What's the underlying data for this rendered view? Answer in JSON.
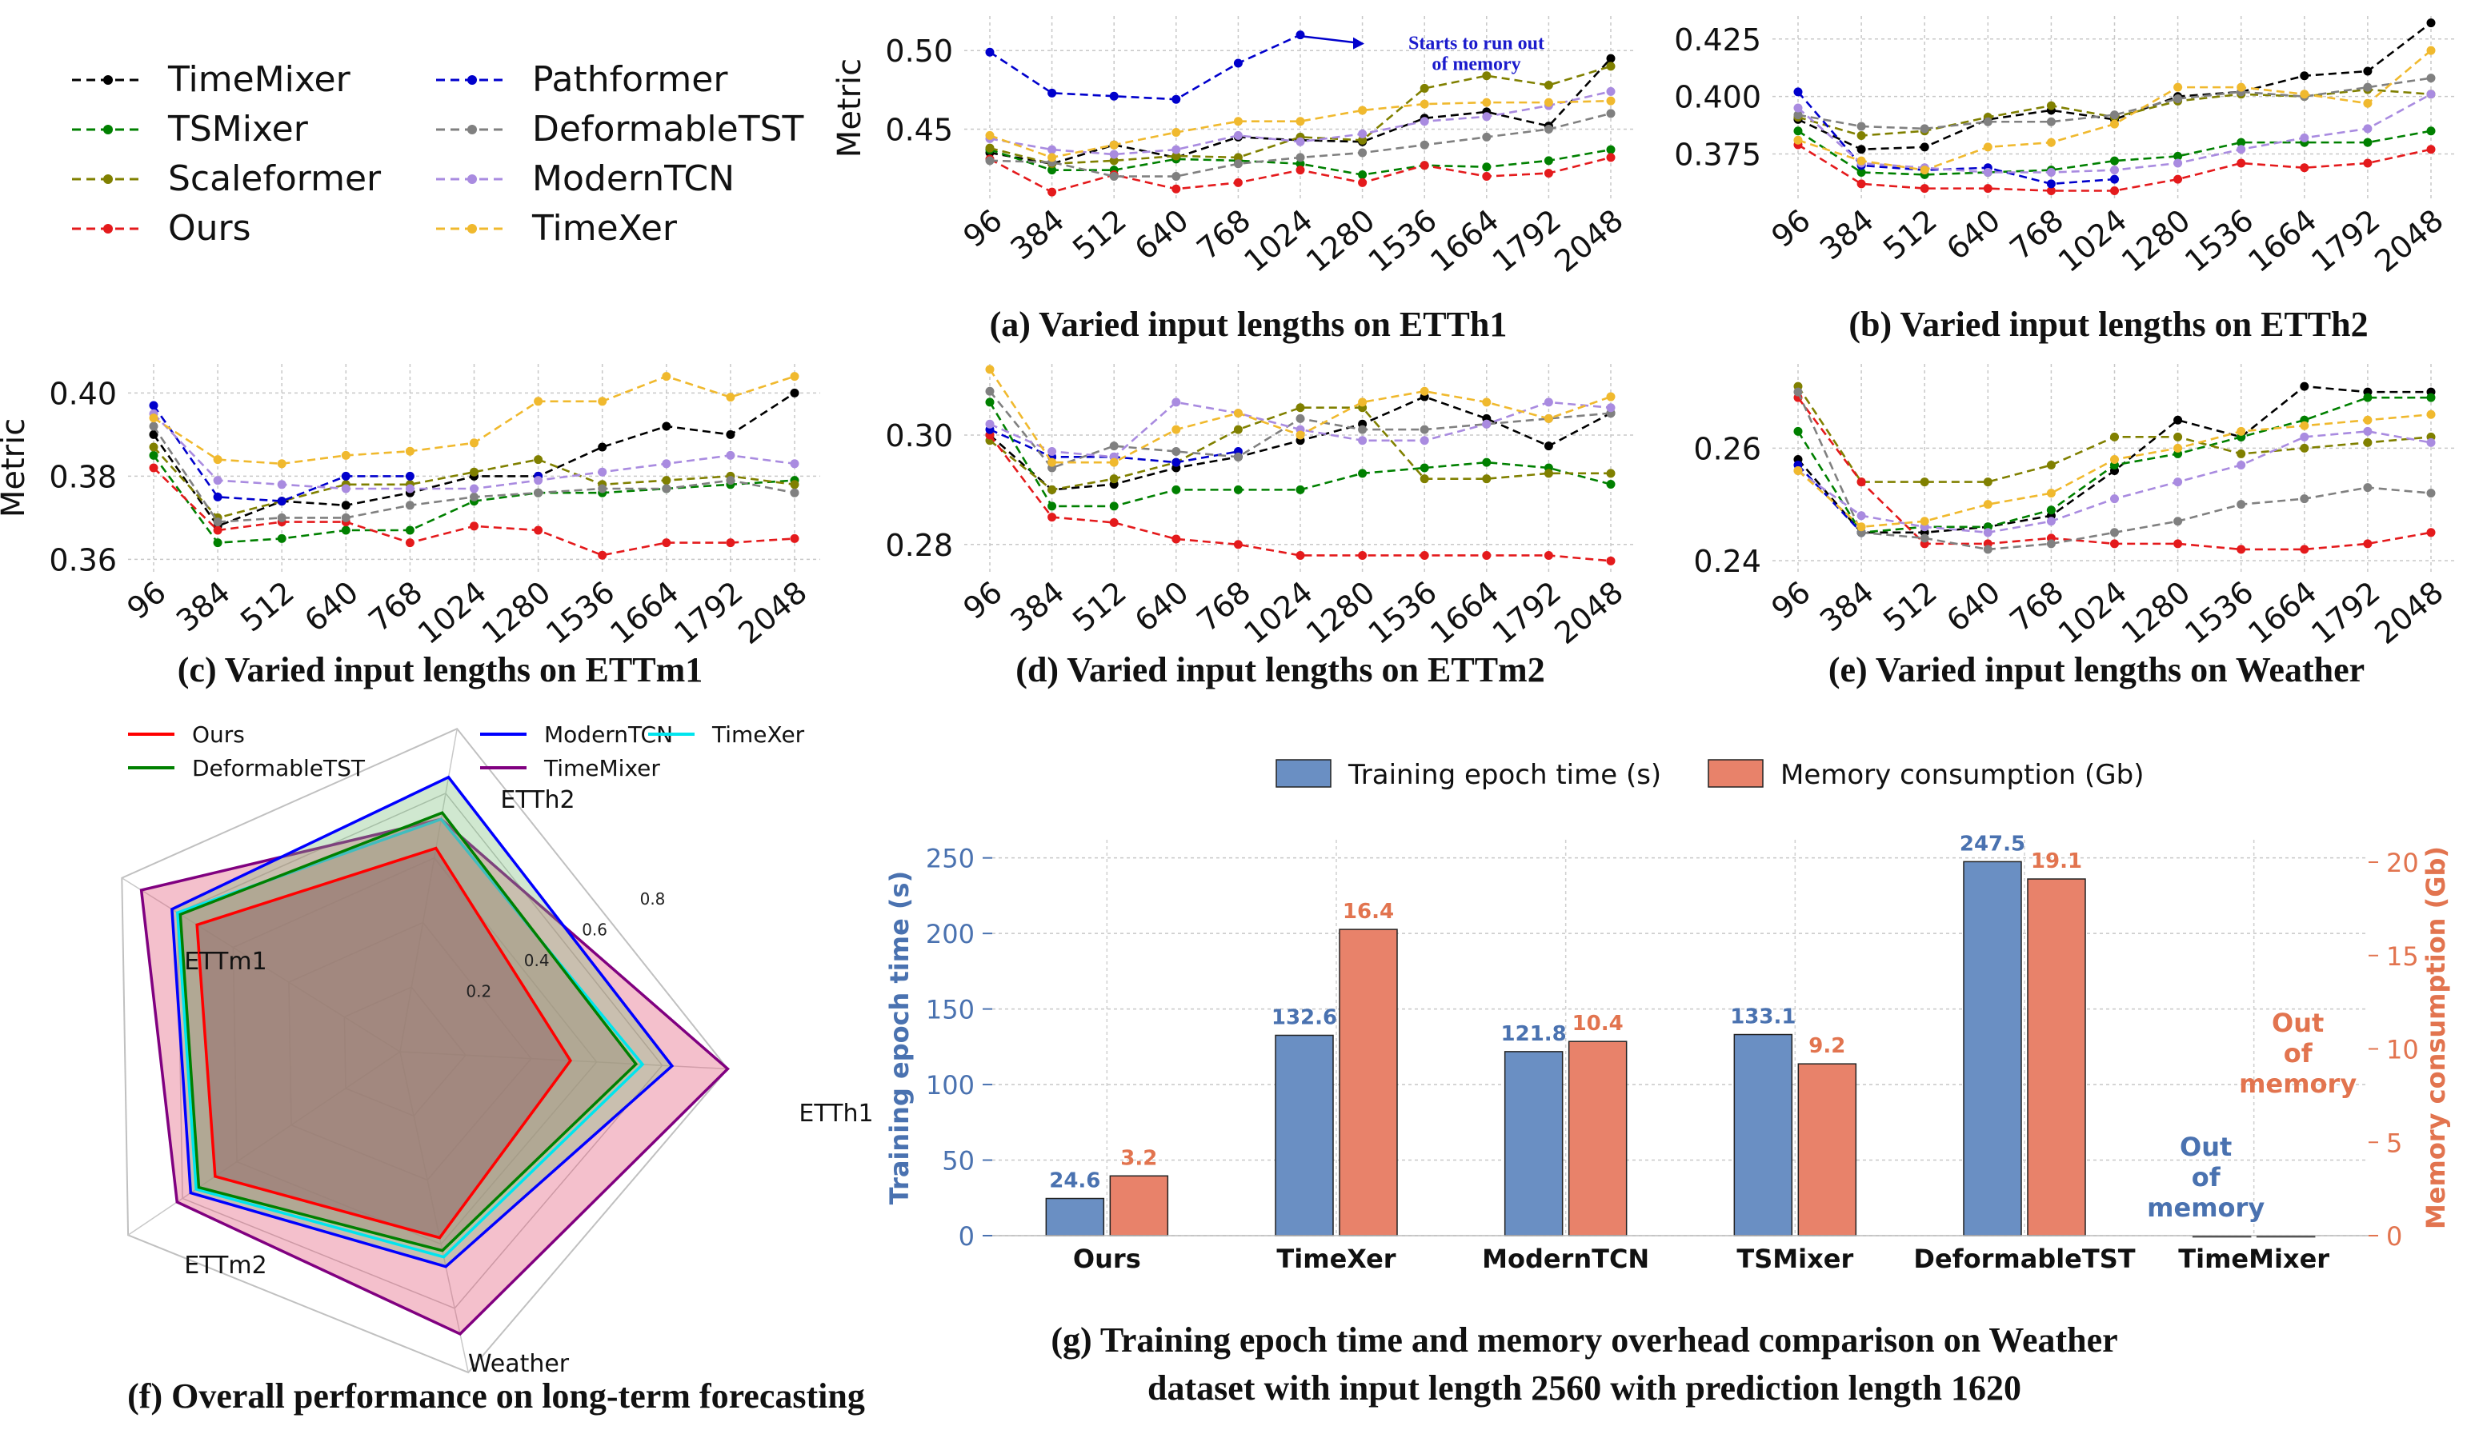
{
  "legend_top": {
    "entries": [
      {
        "name": "TimeMixer",
        "color": "#000000"
      },
      {
        "name": "TSMixer",
        "color": "#008000"
      },
      {
        "name": "Scaleformer",
        "color": "#808000"
      },
      {
        "name": "Ours",
        "color": "#e41a1c"
      },
      {
        "name": "Pathformer",
        "color": "#0000cc"
      },
      {
        "name": "DeformableTST",
        "color": "#808080"
      },
      {
        "name": "ModernTCN",
        "color": "#a98be0"
      },
      {
        "name": "TimeXer",
        "color": "#f0b92e"
      }
    ]
  },
  "captions": {
    "a": "(a) Varied input lengths on ETTh1",
    "b": "(b) Varied input lengths on ETTh2",
    "c": "(c) Varied input lengths on ETTm1",
    "d": "(d) Varied input lengths on ETTm2",
    "e": "(e) Varied input lengths on Weather",
    "f": "(f) Overall performance on long-term forecasting",
    "g_line1": "(g) Training epoch time and memory overhead comparison on Weather",
    "g_line2": "dataset with input length  2560 with prediction length 1620"
  },
  "chart_data": [
    {
      "id": "a",
      "type": "line",
      "ylabel": "Metric",
      "x": [
        "96",
        "384",
        "512",
        "640",
        "768",
        "1024",
        "1280",
        "1536",
        "1664",
        "1792",
        "2048"
      ],
      "ylim": [
        0.405,
        0.522
      ],
      "yticks": [
        0.45,
        0.5
      ],
      "ytick_labels": [
        "0.45",
        "0.50"
      ],
      "annotation": "Starts to run out of memory",
      "series": [
        {
          "name": "TimeMixer",
          "values": [
            0.435,
            0.428,
            0.44,
            0.432,
            0.445,
            0.443,
            0.442,
            0.457,
            0.461,
            0.452,
            0.495
          ]
        },
        {
          "name": "TSMixer",
          "values": [
            0.437,
            0.424,
            0.424,
            0.431,
            0.43,
            0.428,
            0.421,
            0.427,
            0.426,
            0.43,
            0.437
          ]
        },
        {
          "name": "Scaleformer",
          "values": [
            0.438,
            0.428,
            0.43,
            0.433,
            0.432,
            0.445,
            0.443,
            0.476,
            0.484,
            0.478,
            0.49
          ]
        },
        {
          "name": "Ours",
          "values": [
            0.431,
            0.41,
            0.421,
            0.412,
            0.416,
            0.424,
            0.416,
            0.427,
            0.42,
            0.422,
            0.432
          ]
        },
        {
          "name": "Pathformer",
          "values": [
            0.499,
            0.473,
            0.471,
            0.469,
            0.492,
            0.51,
            null,
            null,
            null,
            null,
            null
          ]
        },
        {
          "name": "DeformableTST",
          "values": [
            0.43,
            0.429,
            0.42,
            0.42,
            0.428,
            0.432,
            0.435,
            0.44,
            0.445,
            0.45,
            0.46
          ]
        },
        {
          "name": "ModernTCN",
          "values": [
            0.444,
            0.437,
            0.434,
            0.437,
            0.446,
            0.442,
            0.447,
            0.455,
            0.458,
            0.465,
            0.474
          ]
        },
        {
          "name": "TimeXer",
          "values": [
            0.446,
            0.432,
            0.44,
            0.448,
            0.455,
            0.455,
            0.462,
            0.466,
            0.467,
            0.467,
            0.468
          ]
        }
      ]
    },
    {
      "id": "b",
      "type": "line",
      "ylabel": "",
      "x": [
        "96",
        "384",
        "512",
        "640",
        "768",
        "1024",
        "1280",
        "1536",
        "1664",
        "1792",
        "2048"
      ],
      "ylim": [
        0.355,
        0.435
      ],
      "yticks": [
        0.375,
        0.4,
        0.425
      ],
      "ytick_labels": [
        "0.375",
        "0.400",
        "0.425"
      ],
      "series": [
        {
          "name": "TimeMixer",
          "values": [
            0.39,
            0.377,
            0.378,
            0.39,
            0.394,
            0.39,
            0.4,
            0.402,
            0.409,
            0.411,
            0.432
          ]
        },
        {
          "name": "TSMixer",
          "values": [
            0.385,
            0.367,
            0.366,
            0.367,
            0.368,
            0.372,
            0.374,
            0.38,
            0.38,
            0.38,
            0.385
          ]
        },
        {
          "name": "Scaleformer",
          "values": [
            0.391,
            0.383,
            0.385,
            0.391,
            0.396,
            0.391,
            0.398,
            0.401,
            0.4,
            0.403,
            0.401
          ]
        },
        {
          "name": "Ours",
          "values": [
            0.379,
            0.362,
            0.36,
            0.36,
            0.359,
            0.359,
            0.364,
            0.371,
            0.369,
            0.371,
            0.377
          ]
        },
        {
          "name": "Pathformer",
          "values": [
            0.402,
            0.37,
            0.368,
            0.369,
            0.362,
            0.364,
            null,
            null,
            null,
            null,
            null
          ]
        },
        {
          "name": "DeformableTST",
          "values": [
            0.392,
            0.387,
            0.386,
            0.389,
            0.389,
            0.392,
            0.399,
            0.402,
            0.4,
            0.404,
            0.408
          ]
        },
        {
          "name": "ModernTCN",
          "values": [
            0.395,
            0.371,
            0.369,
            0.367,
            0.367,
            0.368,
            0.371,
            0.377,
            0.382,
            0.386,
            0.401
          ]
        },
        {
          "name": "TimeXer",
          "values": [
            0.381,
            0.372,
            0.368,
            0.378,
            0.38,
            0.388,
            0.404,
            0.404,
            0.401,
            0.397,
            0.42
          ]
        }
      ]
    },
    {
      "id": "c",
      "type": "line",
      "ylabel": "Metric",
      "x": [
        "96",
        "384",
        "512",
        "640",
        "768",
        "1024",
        "1280",
        "1536",
        "1664",
        "1792",
        "2048"
      ],
      "ylim": [
        0.357,
        0.407
      ],
      "yticks": [
        0.36,
        0.38,
        0.4
      ],
      "ytick_labels": [
        "0.36",
        "0.38",
        "0.40"
      ],
      "series": [
        {
          "name": "TimeMixer",
          "values": [
            0.39,
            0.368,
            0.374,
            0.373,
            0.376,
            0.38,
            0.38,
            0.387,
            0.392,
            0.39,
            0.4
          ]
        },
        {
          "name": "TSMixer",
          "values": [
            0.385,
            0.364,
            0.365,
            0.367,
            0.367,
            0.374,
            0.376,
            0.376,
            0.377,
            0.378,
            0.379
          ]
        },
        {
          "name": "Scaleformer",
          "values": [
            0.387,
            0.37,
            0.374,
            0.378,
            0.378,
            0.381,
            0.384,
            0.378,
            0.379,
            0.38,
            0.378
          ]
        },
        {
          "name": "Ours",
          "values": [
            0.382,
            0.367,
            0.369,
            0.369,
            0.364,
            0.368,
            0.367,
            0.361,
            0.364,
            0.364,
            0.365
          ]
        },
        {
          "name": "Pathformer",
          "values": [
            0.397,
            0.375,
            0.374,
            0.38,
            0.38,
            null,
            0.38,
            null,
            null,
            null,
            null
          ]
        },
        {
          "name": "DeformableTST",
          "values": [
            0.392,
            0.369,
            0.37,
            0.37,
            0.373,
            0.375,
            0.376,
            0.377,
            0.377,
            0.379,
            0.376
          ]
        },
        {
          "name": "ModernTCN",
          "values": [
            0.395,
            0.379,
            0.378,
            0.377,
            0.377,
            0.377,
            0.379,
            0.381,
            0.383,
            0.385,
            0.383
          ]
        },
        {
          "name": "TimeXer",
          "values": [
            0.394,
            0.384,
            0.383,
            0.385,
            0.386,
            0.388,
            0.398,
            0.398,
            0.404,
            0.399,
            0.404
          ]
        }
      ]
    },
    {
      "id": "d",
      "type": "line",
      "ylabel": "",
      "x": [
        "96",
        "384",
        "512",
        "640",
        "768",
        "1024",
        "1280",
        "1536",
        "1664",
        "1792",
        "2048"
      ],
      "ylim": [
        0.275,
        0.313
      ],
      "yticks": [
        0.28,
        0.3
      ],
      "ytick_labels": [
        "0.28",
        "0.30"
      ],
      "series": [
        {
          "name": "TimeMixer",
          "values": [
            0.3,
            0.29,
            0.291,
            0.294,
            0.296,
            0.299,
            0.302,
            0.307,
            0.303,
            0.298,
            0.304
          ]
        },
        {
          "name": "TSMixer",
          "values": [
            0.306,
            0.287,
            0.287,
            0.29,
            0.29,
            0.29,
            0.293,
            0.294,
            0.295,
            0.294,
            0.291
          ]
        },
        {
          "name": "Scaleformer",
          "values": [
            0.299,
            0.29,
            0.292,
            0.295,
            0.301,
            0.305,
            0.305,
            0.292,
            0.292,
            0.293,
            0.293
          ]
        },
        {
          "name": "Ours",
          "values": [
            0.3,
            0.285,
            0.284,
            0.281,
            0.28,
            0.278,
            0.278,
            0.278,
            0.278,
            0.278,
            0.277
          ]
        },
        {
          "name": "Pathformer",
          "values": [
            0.301,
            0.296,
            0.296,
            0.295,
            0.297,
            null,
            null,
            null,
            null,
            null,
            null
          ]
        },
        {
          "name": "DeformableTST",
          "values": [
            0.308,
            0.294,
            0.298,
            0.297,
            0.296,
            0.303,
            0.301,
            0.301,
            0.302,
            0.303,
            0.304
          ]
        },
        {
          "name": "ModernTCN",
          "values": [
            0.302,
            0.297,
            0.296,
            0.306,
            0.304,
            0.301,
            0.299,
            0.299,
            0.302,
            0.306,
            0.305
          ]
        },
        {
          "name": "TimeXer",
          "values": [
            0.312,
            0.295,
            0.295,
            0.301,
            0.304,
            0.3,
            0.306,
            0.308,
            0.306,
            0.303,
            0.307
          ]
        }
      ]
    },
    {
      "id": "e",
      "type": "line",
      "ylabel": "",
      "x": [
        "96",
        "384",
        "512",
        "640",
        "768",
        "1024",
        "1280",
        "1536",
        "1664",
        "1792",
        "2048"
      ],
      "ylim": [
        0.238,
        0.275
      ],
      "yticks": [
        0.24,
        0.26
      ],
      "ytick_labels": [
        "0.24",
        "0.26"
      ],
      "series": [
        {
          "name": "TimeMixer",
          "values": [
            0.258,
            0.245,
            0.245,
            0.246,
            0.248,
            0.256,
            0.265,
            0.262,
            0.271,
            0.27,
            0.27
          ]
        },
        {
          "name": "TSMixer",
          "values": [
            0.263,
            0.245,
            0.246,
            0.246,
            0.249,
            0.257,
            0.259,
            0.262,
            0.265,
            0.269,
            0.269
          ]
        },
        {
          "name": "Scaleformer",
          "values": [
            0.271,
            0.254,
            0.254,
            0.254,
            0.257,
            0.262,
            0.262,
            0.259,
            0.26,
            0.261,
            0.262
          ]
        },
        {
          "name": "Ours",
          "values": [
            0.269,
            0.254,
            0.243,
            0.243,
            0.244,
            0.243,
            0.243,
            0.242,
            0.242,
            0.243,
            0.245
          ]
        },
        {
          "name": "Pathformer",
          "values": [
            0.257,
            0.245,
            null,
            null,
            null,
            null,
            null,
            null,
            null,
            null,
            null
          ]
        },
        {
          "name": "DeformableTST",
          "values": [
            0.27,
            0.245,
            0.244,
            0.242,
            0.243,
            0.245,
            0.247,
            0.25,
            0.251,
            0.253,
            0.252
          ]
        },
        {
          "name": "ModernTCN",
          "values": [
            0.256,
            0.248,
            0.246,
            0.245,
            0.247,
            0.251,
            0.254,
            0.257,
            0.262,
            0.263,
            0.261
          ]
        },
        {
          "name": "TimeXer",
          "values": [
            0.256,
            0.246,
            0.247,
            0.25,
            0.252,
            0.258,
            0.26,
            0.263,
            0.264,
            0.265,
            0.266
          ]
        }
      ]
    },
    {
      "id": "f",
      "type": "radar",
      "axes": [
        "ETTh2",
        "ETTh1",
        "Weather",
        "ETTm2",
        "ETTm1"
      ],
      "radial_ticks": [
        0.2,
        0.4,
        0.6,
        0.8
      ],
      "radial_tick_labels": [
        "0.2",
        "0.4",
        "0.6",
        "0.8"
      ],
      "rmax": 1.0,
      "legend": [
        {
          "name": "Ours",
          "color": "#ff0000"
        },
        {
          "name": "DeformableTST",
          "color": "#008000"
        },
        {
          "name": "ModernTCN",
          "color": "#0000ff"
        },
        {
          "name": "TimeMixer",
          "color": "#800080"
        },
        {
          "name": "TimeXer",
          "color": "#00e5ee"
        }
      ],
      "series": [
        {
          "name": "TimeMixer",
          "values": [
            0.72,
            1.0,
            0.88,
            0.82,
            0.93
          ]
        },
        {
          "name": "ModernTCN",
          "values": [
            0.85,
            0.83,
            0.67,
            0.77,
            0.82
          ]
        },
        {
          "name": "TimeXer",
          "values": [
            0.72,
            0.74,
            0.64,
            0.75,
            0.8
          ]
        },
        {
          "name": "DeformableTST",
          "values": [
            0.74,
            0.72,
            0.62,
            0.74,
            0.79
          ]
        },
        {
          "name": "Ours",
          "values": [
            0.63,
            0.52,
            0.58,
            0.68,
            0.73
          ]
        }
      ]
    },
    {
      "id": "g",
      "type": "bar",
      "categories": [
        "Ours",
        "TimeXer",
        "ModernTCN",
        "TSMixer",
        "DeformableTST",
        "TimeMixer"
      ],
      "ylabel_left": "Training epoch time (s)",
      "ylabel_right": "Memory consumption (Gb)",
      "ylim_left": [
        0,
        262
      ],
      "ylim_right": [
        0,
        21.2
      ],
      "yticks_left": [
        0,
        50,
        100,
        150,
        200,
        250
      ],
      "yticks_left_labels": [
        "0",
        "50",
        "100",
        "150",
        "200",
        "250"
      ],
      "yticks_right": [
        0,
        5,
        10,
        15,
        20
      ],
      "yticks_right_labels": [
        "0",
        "5",
        "10",
        "15",
        "20"
      ],
      "series": [
        {
          "name": "Training epoch time (s)",
          "color": "#6a8fc3",
          "values": [
            24.6,
            132.6,
            121.8,
            133.1,
            247.5,
            0
          ],
          "labels": [
            "24.6",
            "132.6",
            "121.8",
            "133.1",
            "247.5",
            ""
          ]
        },
        {
          "name": "Memory consumption (Gb)",
          "color": "#e8826a",
          "values": [
            3.2,
            16.4,
            10.4,
            9.2,
            19.1,
            0
          ],
          "labels": [
            "3.2",
            "16.4",
            "10.4",
            "9.2",
            "19.1",
            ""
          ]
        }
      ],
      "oom_label_time": "Out of memory",
      "oom_label_mem": "Out of memory",
      "label_color_left": "#4a72b0",
      "label_color_right": "#e2744f"
    }
  ]
}
